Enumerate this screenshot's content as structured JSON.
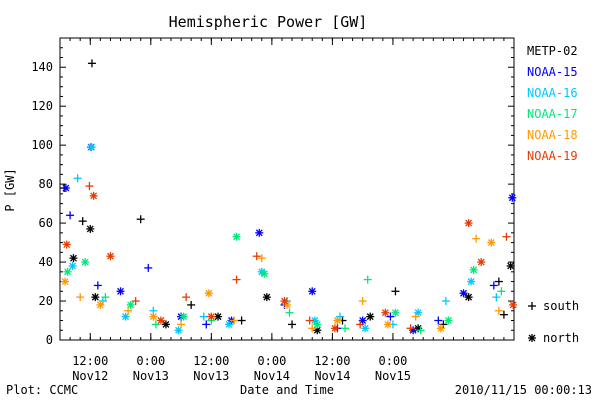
{
  "chart_data": {
    "type": "scatter",
    "title": "Hemispheric Power [GW]",
    "ylabel": "P [GW]",
    "xlabel": "Date and Time",
    "ylim": [
      0,
      155
    ],
    "yticks": [
      0,
      20,
      40,
      60,
      80,
      100,
      120,
      140
    ],
    "xlim": [
      "2010-11-11 06:00",
      "2010-11-15 00:00"
    ],
    "x_ticks": [
      {
        "time": "12:00",
        "date": "Nov12"
      },
      {
        "time": "0:00",
        "date": "Nov13"
      },
      {
        "time": "12:00",
        "date": "Nov13"
      },
      {
        "time": "0:00",
        "date": "Nov14"
      },
      {
        "time": "12:00",
        "date": "Nov14"
      },
      {
        "time": "0:00",
        "date": "Nov15"
      }
    ],
    "legend": {
      "placement": "right",
      "series": [
        {
          "name": "METP-02",
          "color": "#000000"
        },
        {
          "name": "NOAA-15",
          "color": "#0000ff"
        },
        {
          "name": "NOAA-16",
          "color": "#00c8ff"
        },
        {
          "name": "NOAA-17",
          "color": "#00e87a"
        },
        {
          "name": "NOAA-18",
          "color": "#ff9900"
        },
        {
          "name": "NOAA-19",
          "color": "#e63c00"
        }
      ],
      "markers": [
        {
          "symbol": "+",
          "label": "south"
        },
        {
          "symbol": "*",
          "label": "north"
        }
      ]
    },
    "series": [
      {
        "name": "METP-02",
        "points": [
          [
            "2010-11-11 12:20",
            142,
            "+"
          ],
          [
            "2010-11-11 12:00",
            57,
            "*"
          ],
          [
            "2010-11-11 06:50",
            78,
            "+"
          ],
          [
            "2010-11-11 08:40",
            42,
            "*"
          ],
          [
            "2010-11-11 10:30",
            61,
            "+"
          ],
          [
            "2010-11-11 13:00",
            22,
            "*"
          ],
          [
            "2010-11-11 22:00",
            62,
            "+"
          ],
          [
            "2010-11-12 03:00",
            8,
            "*"
          ],
          [
            "2010-11-12 08:00",
            18,
            "+"
          ],
          [
            "2010-11-12 13:20",
            12,
            "*"
          ],
          [
            "2010-11-12 18:00",
            10,
            "+"
          ],
          [
            "2010-11-12 23:00",
            22,
            "*"
          ],
          [
            "2010-11-13 04:00",
            8,
            "+"
          ],
          [
            "2010-11-13 09:00",
            5,
            "*"
          ],
          [
            "2010-11-13 14:00",
            10,
            "+"
          ],
          [
            "2010-11-13 19:30",
            12,
            "*"
          ],
          [
            "2010-11-14 00:30",
            25,
            "+"
          ],
          [
            "2010-11-14 05:00",
            6,
            "*"
          ],
          [
            "2010-11-14 10:00",
            8,
            "+"
          ],
          [
            "2010-11-14 15:00",
            22,
            "*"
          ],
          [
            "2010-11-14 21:00",
            30,
            "+"
          ],
          [
            "2010-11-14 23:20",
            38,
            "*"
          ],
          [
            "2010-11-14 22:00",
            13,
            "+"
          ]
        ]
      },
      {
        "name": "NOAA-15",
        "points": [
          [
            "2010-11-11 07:10",
            78,
            "*"
          ],
          [
            "2010-11-11 08:00",
            64,
            "+"
          ],
          [
            "2010-11-11 12:10",
            99,
            "*"
          ],
          [
            "2010-11-11 13:30",
            28,
            "+"
          ],
          [
            "2010-11-11 18:00",
            25,
            "*"
          ],
          [
            "2010-11-11 23:30",
            37,
            "+"
          ],
          [
            "2010-11-12 06:00",
            12,
            "*"
          ],
          [
            "2010-11-12 11:00",
            8,
            "+"
          ],
          [
            "2010-11-12 16:00",
            10,
            "*"
          ],
          [
            "2010-11-12 21:30",
            55,
            "*"
          ],
          [
            "2010-11-13 02:30",
            18,
            "+"
          ],
          [
            "2010-11-13 08:00",
            25,
            "*"
          ],
          [
            "2010-11-13 13:00",
            6,
            "+"
          ],
          [
            "2010-11-13 18:00",
            10,
            "*"
          ],
          [
            "2010-11-13 23:30",
            12,
            "+"
          ],
          [
            "2010-11-14 04:00",
            5,
            "*"
          ],
          [
            "2010-11-14 09:00",
            10,
            "+"
          ],
          [
            "2010-11-14 14:00",
            24,
            "*"
          ],
          [
            "2010-11-14 23:40",
            73,
            "*"
          ],
          [
            "2010-11-14 20:00",
            28,
            "+"
          ]
        ]
      },
      {
        "name": "NOAA-16",
        "points": [
          [
            "2010-11-11 09:30",
            83,
            "+"
          ],
          [
            "2010-11-11 12:15",
            99,
            "*"
          ],
          [
            "2010-11-11 08:30",
            38,
            "*"
          ],
          [
            "2010-11-11 14:30",
            20,
            "+"
          ],
          [
            "2010-11-11 19:00",
            12,
            "*"
          ],
          [
            "2010-11-12 00:30",
            15,
            "+"
          ],
          [
            "2010-11-12 05:30",
            5,
            "*"
          ],
          [
            "2010-11-12 10:30",
            12,
            "+"
          ],
          [
            "2010-11-12 15:30",
            8,
            "*"
          ],
          [
            "2010-11-12 22:00",
            35,
            "*"
          ],
          [
            "2010-11-13 03:00",
            20,
            "+"
          ],
          [
            "2010-11-13 08:30",
            10,
            "*"
          ],
          [
            "2010-11-13 13:30",
            12,
            "+"
          ],
          [
            "2010-11-13 18:30",
            6,
            "*"
          ],
          [
            "2010-11-14 00:00",
            8,
            "+"
          ],
          [
            "2010-11-14 05:00",
            14,
            "*"
          ],
          [
            "2010-11-14 10:30",
            20,
            "+"
          ],
          [
            "2010-11-14 15:30",
            30,
            "*"
          ],
          [
            "2010-11-14 20:30",
            22,
            "+"
          ]
        ]
      },
      {
        "name": "NOAA-17",
        "points": [
          [
            "2010-11-11 07:30",
            35,
            "*"
          ],
          [
            "2010-11-11 11:00",
            40,
            "*"
          ],
          [
            "2010-11-11 15:00",
            22,
            "+"
          ],
          [
            "2010-11-11 20:00",
            18,
            "*"
          ],
          [
            "2010-11-12 01:00",
            8,
            "+"
          ],
          [
            "2010-11-12 06:30",
            12,
            "*"
          ],
          [
            "2010-11-12 12:00",
            10,
            "+"
          ],
          [
            "2010-11-12 17:00",
            53,
            "*"
          ],
          [
            "2010-11-12 22:30",
            34,
            "*"
          ],
          [
            "2010-11-13 03:30",
            14,
            "+"
          ],
          [
            "2010-11-13 09:00",
            8,
            "*"
          ],
          [
            "2010-11-13 14:30",
            6,
            "+"
          ],
          [
            "2010-11-13 19:00",
            31,
            "+"
          ],
          [
            "2010-11-14 00:30",
            14,
            "*"
          ],
          [
            "2010-11-14 05:30",
            5,
            "+"
          ],
          [
            "2010-11-14 11:00",
            10,
            "*"
          ],
          [
            "2010-11-14 16:00",
            36,
            "*"
          ],
          [
            "2010-11-14 21:30",
            25,
            "+"
          ]
        ]
      },
      {
        "name": "NOAA-18",
        "points": [
          [
            "2010-11-11 07:00",
            30,
            "*"
          ],
          [
            "2010-11-11 10:00",
            22,
            "+"
          ],
          [
            "2010-11-11 14:00",
            18,
            "*"
          ],
          [
            "2010-11-11 19:30",
            15,
            "+"
          ],
          [
            "2010-11-12 00:30",
            12,
            "*"
          ],
          [
            "2010-11-12 06:00",
            8,
            "+"
          ],
          [
            "2010-11-12 11:30",
            24,
            "*"
          ],
          [
            "2010-11-12 16:30",
            10,
            "+"
          ],
          [
            "2010-11-12 22:00",
            42,
            "+"
          ],
          [
            "2010-11-13 03:00",
            18,
            "*"
          ],
          [
            "2010-11-13 08:00",
            6,
            "+"
          ],
          [
            "2010-11-13 13:00",
            10,
            "*"
          ],
          [
            "2010-11-13 18:00",
            20,
            "+"
          ],
          [
            "2010-11-13 23:00",
            8,
            "*"
          ],
          [
            "2010-11-14 04:30",
            12,
            "+"
          ],
          [
            "2010-11-14 09:30",
            6,
            "*"
          ],
          [
            "2010-11-14 16:30",
            52,
            "+"
          ],
          [
            "2010-11-14 19:30",
            50,
            "*"
          ],
          [
            "2010-11-14 21:00",
            15,
            "+"
          ]
        ]
      },
      {
        "name": "NOAA-19",
        "points": [
          [
            "2010-11-11 07:20",
            49,
            "*"
          ],
          [
            "2010-11-11 11:50",
            79,
            "+"
          ],
          [
            "2010-11-11 12:40",
            74,
            "*"
          ],
          [
            "2010-11-11 16:00",
            43,
            "*"
          ],
          [
            "2010-11-11 21:00",
            20,
            "+"
          ],
          [
            "2010-11-12 02:00",
            10,
            "*"
          ],
          [
            "2010-11-12 07:00",
            22,
            "+"
          ],
          [
            "2010-11-12 12:00",
            12,
            "*"
          ],
          [
            "2010-11-12 17:00",
            31,
            "+"
          ],
          [
            "2010-11-12 21:00",
            43,
            "+"
          ],
          [
            "2010-11-13 02:30",
            20,
            "*"
          ],
          [
            "2010-11-13 07:30",
            10,
            "+"
          ],
          [
            "2010-11-13 12:30",
            6,
            "*"
          ],
          [
            "2010-11-13 17:30",
            8,
            "+"
          ],
          [
            "2010-11-13 22:30",
            14,
            "*"
          ],
          [
            "2010-11-14 03:30",
            6,
            "+"
          ],
          [
            "2010-11-14 15:00",
            60,
            "*"
          ],
          [
            "2010-11-14 17:30",
            40,
            "*"
          ],
          [
            "2010-11-14 22:30",
            53,
            "+"
          ],
          [
            "2010-11-14 23:50",
            18,
            "*"
          ]
        ]
      }
    ]
  },
  "footer": {
    "plot_credit": "Plot: CCMC",
    "timestamp": "2010/11/15 00:00:13"
  }
}
